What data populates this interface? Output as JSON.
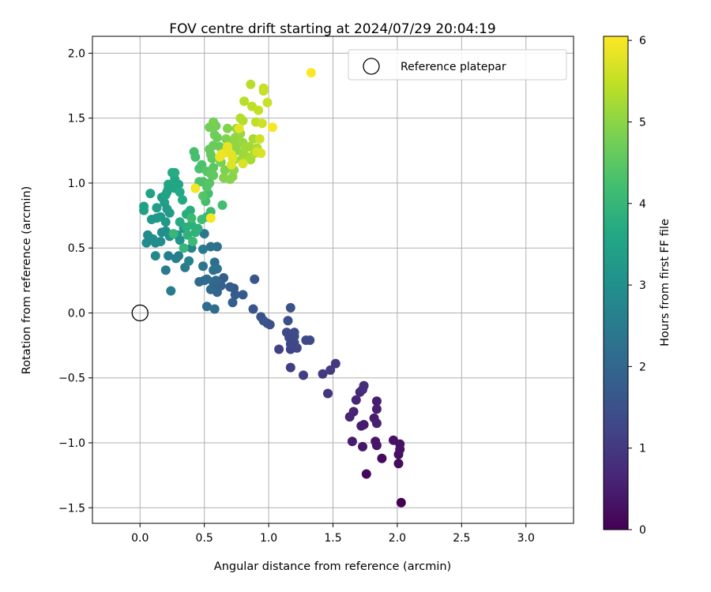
{
  "chart_data": {
    "type": "scatter",
    "title": "FOV centre drift starting at 2024/07/29 20:04:19",
    "xlabel": "Angular distance from reference (arcmin)",
    "ylabel": "Rotation from reference (arcmin)",
    "xlim": [
      -0.37,
      3.37
    ],
    "ylim": [
      -1.62,
      2.13
    ],
    "xticks": [
      "0.0",
      "0.5",
      "1.0",
      "1.5",
      "2.0",
      "2.5",
      "3.0"
    ],
    "xtick_values": [
      0,
      0.5,
      1.0,
      1.5,
      2.0,
      2.5,
      3.0
    ],
    "yticks": [
      "−1.5",
      "−1.0",
      "−0.5",
      "0.0",
      "0.5",
      "1.0",
      "1.5",
      "2.0"
    ],
    "ytick_values": [
      -1.5,
      -1.0,
      -0.5,
      0,
      0.5,
      1.0,
      1.5,
      2.0
    ],
    "grid": true,
    "legend": {
      "placement": "top-right",
      "entries": [
        "Reference platepar"
      ]
    },
    "reference_point": {
      "x": 0,
      "y": 0
    },
    "colorbar": {
      "label": "Hours from first FF file",
      "range": [
        0,
        6.05
      ],
      "colormap": "viridis",
      "ticks": [
        "0",
        "1",
        "2",
        "3",
        "4",
        "5",
        "6"
      ],
      "tick_values": [
        0,
        1,
        2,
        3,
        4,
        5,
        6
      ]
    },
    "points": [
      [
        2.03,
        -1.46,
        0.0
      ],
      [
        1.76,
        -1.24,
        0.1
      ],
      [
        1.88,
        -1.12,
        0.15
      ],
      [
        2.01,
        -1.16,
        0.2
      ],
      [
        2.01,
        -1.09,
        0.25
      ],
      [
        2.02,
        -1.05,
        0.3
      ],
      [
        2.02,
        -1.01,
        0.3
      ],
      [
        1.97,
        -0.98,
        0.3
      ],
      [
        1.83,
        -0.99,
        0.35
      ],
      [
        1.84,
        -1.02,
        0.35
      ],
      [
        1.73,
        -1.03,
        0.4
      ],
      [
        1.65,
        -0.99,
        0.45
      ],
      [
        1.74,
        -0.86,
        0.45
      ],
      [
        1.72,
        -0.87,
        0.45
      ],
      [
        1.82,
        -0.81,
        0.5
      ],
      [
        1.84,
        -0.85,
        0.55
      ],
      [
        1.63,
        -0.8,
        0.6
      ],
      [
        1.66,
        -0.76,
        0.6
      ],
      [
        1.84,
        -0.74,
        0.55
      ],
      [
        1.84,
        -0.68,
        0.5
      ],
      [
        1.68,
        -0.67,
        0.65
      ],
      [
        1.71,
        -0.61,
        0.7
      ],
      [
        1.73,
        -0.59,
        0.75
      ],
      [
        1.74,
        -0.56,
        0.8
      ],
      [
        1.46,
        -0.62,
        0.9
      ],
      [
        1.42,
        -0.47,
        1.0
      ],
      [
        1.48,
        -0.44,
        1.05
      ],
      [
        1.52,
        -0.39,
        1.0
      ],
      [
        1.27,
        -0.48,
        1.1
      ],
      [
        1.17,
        -0.42,
        1.1
      ],
      [
        1.08,
        -0.28,
        1.15
      ],
      [
        1.17,
        -0.28,
        1.2
      ],
      [
        1.22,
        -0.27,
        1.25
      ],
      [
        1.17,
        -0.24,
        1.25
      ],
      [
        1.2,
        -0.23,
        1.3
      ],
      [
        1.29,
        -0.21,
        1.35
      ],
      [
        1.32,
        -0.21,
        1.35
      ],
      [
        1.16,
        -0.19,
        1.3
      ],
      [
        1.14,
        -0.15,
        1.35
      ],
      [
        1.2,
        -0.15,
        1.4
      ],
      [
        1.2,
        -0.18,
        1.4
      ],
      [
        1.15,
        -0.06,
        1.45
      ],
      [
        1.17,
        0.04,
        1.5
      ],
      [
        0.99,
        -0.08,
        1.5
      ],
      [
        1.01,
        -0.09,
        1.5
      ],
      [
        0.94,
        -0.03,
        1.55
      ],
      [
        0.96,
        -0.06,
        1.6
      ],
      [
        0.88,
        0.03,
        1.6
      ],
      [
        0.89,
        0.26,
        1.6
      ],
      [
        0.8,
        0.14,
        1.7
      ],
      [
        0.74,
        0.14,
        1.75
      ],
      [
        0.73,
        0.19,
        1.7
      ],
      [
        0.7,
        0.2,
        1.75
      ],
      [
        0.72,
        0.08,
        1.8
      ],
      [
        0.65,
        0.27,
        1.8
      ],
      [
        0.63,
        0.21,
        1.9
      ],
      [
        0.6,
        0.18,
        1.9
      ],
      [
        0.6,
        0.16,
        1.95
      ],
      [
        0.57,
        0.2,
        2.0
      ],
      [
        0.57,
        0.24,
        2.0
      ],
      [
        0.55,
        0.18,
        2.05
      ],
      [
        0.59,
        0.25,
        2.05
      ],
      [
        0.5,
        0.25,
        2.1
      ],
      [
        0.46,
        0.24,
        2.1
      ],
      [
        0.52,
        0.26,
        2.15
      ],
      [
        0.52,
        0.05,
        2.15
      ],
      [
        0.58,
        0.03,
        2.15
      ],
      [
        0.57,
        0.33,
        2.2
      ],
      [
        0.58,
        0.39,
        2.2
      ],
      [
        0.6,
        0.34,
        2.25
      ],
      [
        0.6,
        0.51,
        2.25
      ],
      [
        0.55,
        0.51,
        2.3
      ],
      [
        0.49,
        0.36,
        2.35
      ],
      [
        0.5,
        0.61,
        2.4
      ],
      [
        0.49,
        0.49,
        2.45
      ],
      [
        0.35,
        0.35,
        2.5
      ],
      [
        0.24,
        0.17,
        2.5
      ],
      [
        0.2,
        0.33,
        2.5
      ],
      [
        0.28,
        0.42,
        2.6
      ],
      [
        0.22,
        0.44,
        2.6
      ],
      [
        0.3,
        0.44,
        2.6
      ],
      [
        0.38,
        0.4,
        2.65
      ],
      [
        0.4,
        0.5,
        2.7
      ],
      [
        0.12,
        0.44,
        2.8
      ],
      [
        0.12,
        0.54,
        2.85
      ],
      [
        0.05,
        0.54,
        2.9
      ],
      [
        0.1,
        0.57,
        2.9
      ],
      [
        0.06,
        0.6,
        2.95
      ],
      [
        0.16,
        0.55,
        2.95
      ],
      [
        0.17,
        0.62,
        3.0
      ],
      [
        0.2,
        0.63,
        3.0
      ],
      [
        0.23,
        0.59,
        3.05
      ],
      [
        0.29,
        0.6,
        3.1
      ],
      [
        0.31,
        0.56,
        3.1
      ],
      [
        0.34,
        0.65,
        3.1
      ],
      [
        0.09,
        0.72,
        3.2
      ],
      [
        0.13,
        0.73,
        3.2
      ],
      [
        0.2,
        0.7,
        3.25
      ],
      [
        0.16,
        0.74,
        3.25
      ],
      [
        0.23,
        0.77,
        3.3
      ],
      [
        0.21,
        0.8,
        3.3
      ],
      [
        0.13,
        0.81,
        3.35
      ],
      [
        0.19,
        0.85,
        3.35
      ],
      [
        0.17,
        0.89,
        3.35
      ],
      [
        0.03,
        0.79,
        3.4
      ],
      [
        0.03,
        0.82,
        3.4
      ],
      [
        0.08,
        0.92,
        3.45
      ],
      [
        0.21,
        0.93,
        3.45
      ],
      [
        0.2,
        0.91,
        3.5
      ],
      [
        0.22,
        0.96,
        3.5
      ],
      [
        0.22,
        0.99,
        3.55
      ],
      [
        0.27,
        0.96,
        3.55
      ],
      [
        0.27,
        1.03,
        3.6
      ],
      [
        0.3,
        0.99,
        3.6
      ],
      [
        0.31,
        0.93,
        3.65
      ],
      [
        0.33,
        0.87,
        3.65
      ],
      [
        0.25,
        1.08,
        3.65
      ],
      [
        0.27,
        1.08,
        3.7
      ],
      [
        0.31,
        0.7,
        3.7
      ],
      [
        0.36,
        0.76,
        3.75
      ],
      [
        0.39,
        0.79,
        3.75
      ],
      [
        0.36,
        0.66,
        3.8
      ],
      [
        0.4,
        0.68,
        3.85
      ],
      [
        0.45,
        0.65,
        3.85
      ],
      [
        0.37,
        0.6,
        3.9
      ],
      [
        0.43,
        0.62,
        3.9
      ],
      [
        0.34,
        0.5,
        4.0
      ],
      [
        0.26,
        0.61,
        4.0
      ],
      [
        0.52,
        0.74,
        4.05
      ],
      [
        0.55,
        0.78,
        4.1
      ],
      [
        0.41,
        0.55,
        4.1
      ],
      [
        0.4,
        0.73,
        4.1
      ],
      [
        0.48,
        0.72,
        4.15
      ],
      [
        0.51,
        0.86,
        4.2
      ],
      [
        0.64,
        0.83,
        4.2
      ],
      [
        0.53,
        0.92,
        4.2
      ],
      [
        0.42,
        1.24,
        4.25
      ],
      [
        0.43,
        1.2,
        4.25
      ],
      [
        0.46,
        1.11,
        4.3
      ],
      [
        0.48,
        1.14,
        4.3
      ],
      [
        0.46,
        1.01,
        4.35
      ],
      [
        0.49,
        1.01,
        4.35
      ],
      [
        0.49,
        0.9,
        4.4
      ],
      [
        0.52,
        0.97,
        4.4
      ],
      [
        0.54,
        1.0,
        4.45
      ],
      [
        0.52,
        1.09,
        4.45
      ],
      [
        0.55,
        1.07,
        4.5
      ],
      [
        0.57,
        1.12,
        4.5
      ],
      [
        0.57,
        1.06,
        4.55
      ],
      [
        0.56,
        1.19,
        4.55
      ],
      [
        0.55,
        1.22,
        4.6
      ],
      [
        0.54,
        1.26,
        4.6
      ],
      [
        0.57,
        1.29,
        4.65
      ],
      [
        0.62,
        1.28,
        4.65
      ],
      [
        0.6,
        1.35,
        4.7
      ],
      [
        0.58,
        1.37,
        4.7
      ],
      [
        0.59,
        1.44,
        4.75
      ],
      [
        0.54,
        1.43,
        4.75
      ],
      [
        0.57,
        1.47,
        4.8
      ],
      [
        0.62,
        1.18,
        4.8
      ],
      [
        0.63,
        1.16,
        4.8
      ],
      [
        0.66,
        1.25,
        4.85
      ],
      [
        0.66,
        1.1,
        4.85
      ],
      [
        0.67,
        1.34,
        4.9
      ],
      [
        0.68,
        1.42,
        4.9
      ],
      [
        0.65,
        1.04,
        4.9
      ],
      [
        0.7,
        1.03,
        4.95
      ],
      [
        0.72,
        1.05,
        4.95
      ],
      [
        0.73,
        1.1,
        5.0
      ],
      [
        0.73,
        1.18,
        5.0
      ],
      [
        0.75,
        1.25,
        5.0
      ],
      [
        0.72,
        1.3,
        5.05
      ],
      [
        0.74,
        1.35,
        5.05
      ],
      [
        0.77,
        1.31,
        5.05
      ],
      [
        0.75,
        1.42,
        5.1
      ],
      [
        0.78,
        1.38,
        5.1
      ],
      [
        0.8,
        1.31,
        5.1
      ],
      [
        0.8,
        1.23,
        5.15
      ],
      [
        0.79,
        1.18,
        5.15
      ],
      [
        0.82,
        1.27,
        5.2
      ],
      [
        0.85,
        1.28,
        5.2
      ],
      [
        0.84,
        1.2,
        5.2
      ],
      [
        0.86,
        1.18,
        5.25
      ],
      [
        0.88,
        1.34,
        5.25
      ],
      [
        0.89,
        1.23,
        5.3
      ],
      [
        0.91,
        1.27,
        5.3
      ],
      [
        0.8,
        1.48,
        5.35
      ],
      [
        0.78,
        1.5,
        5.35
      ],
      [
        0.81,
        1.63,
        5.4
      ],
      [
        0.86,
        1.76,
        5.4
      ],
      [
        0.87,
        1.59,
        5.45
      ],
      [
        0.9,
        1.47,
        5.45
      ],
      [
        0.92,
        1.56,
        5.5
      ],
      [
        0.96,
        1.71,
        5.5
      ],
      [
        0.96,
        1.73,
        5.55
      ],
      [
        0.99,
        1.62,
        5.55
      ],
      [
        0.95,
        1.46,
        5.6
      ],
      [
        0.93,
        1.34,
        5.6
      ],
      [
        0.91,
        1.24,
        5.65
      ],
      [
        0.94,
        1.23,
        5.7
      ],
      [
        0.8,
        1.15,
        5.7
      ],
      [
        0.72,
        1.19,
        5.75
      ],
      [
        0.71,
        1.14,
        5.75
      ],
      [
        0.71,
        1.22,
        5.8
      ],
      [
        0.77,
        1.42,
        5.8
      ],
      [
        0.68,
        1.28,
        5.85
      ],
      [
        0.65,
        1.23,
        5.85
      ],
      [
        0.63,
        1.22,
        5.9
      ],
      [
        0.62,
        1.2,
        5.9
      ],
      [
        0.43,
        0.96,
        5.95
      ],
      [
        0.55,
        0.73,
        6.0
      ],
      [
        1.03,
        1.43,
        6.0
      ],
      [
        1.33,
        1.85,
        6.05
      ]
    ]
  }
}
